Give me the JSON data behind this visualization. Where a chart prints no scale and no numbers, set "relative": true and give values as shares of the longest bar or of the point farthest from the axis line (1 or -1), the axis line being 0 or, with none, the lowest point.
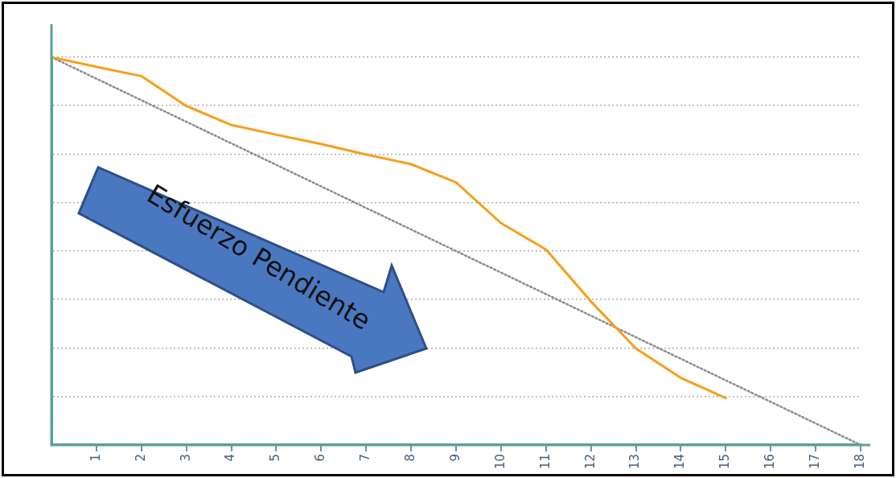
{
  "chart_data": {
    "type": "line",
    "relative": true,
    "xlim": [
      0,
      18
    ],
    "xticks": [
      1,
      2,
      3,
      4,
      5,
      6,
      7,
      8,
      9,
      10,
      11,
      12,
      13,
      14,
      15,
      16,
      17,
      18
    ],
    "series": [
      {
        "color": "#f5a01a",
        "x": [
          0,
          1,
          2,
          3,
          4,
          5,
          6,
          7,
          8,
          9,
          10,
          11,
          12,
          13,
          14,
          15
        ],
        "values": [
          1,
          0.975,
          0.951,
          0.874,
          0.825,
          0.8,
          0.776,
          0.749,
          0.724,
          0.677,
          0.572,
          0.504,
          0.37,
          0.249,
          0.173,
          0.121
        ]
      },
      {
        "color": "#8c8c8c",
        "x": [
          0,
          18
        ],
        "values": [
          1,
          0
        ],
        "line_style": "dotted"
      }
    ],
    "grid": "y",
    "legend": false,
    "marker": "none",
    "line_style": "solid",
    "annotations": [
      "Esfuerzo Pendiente"
    ]
  }
}
